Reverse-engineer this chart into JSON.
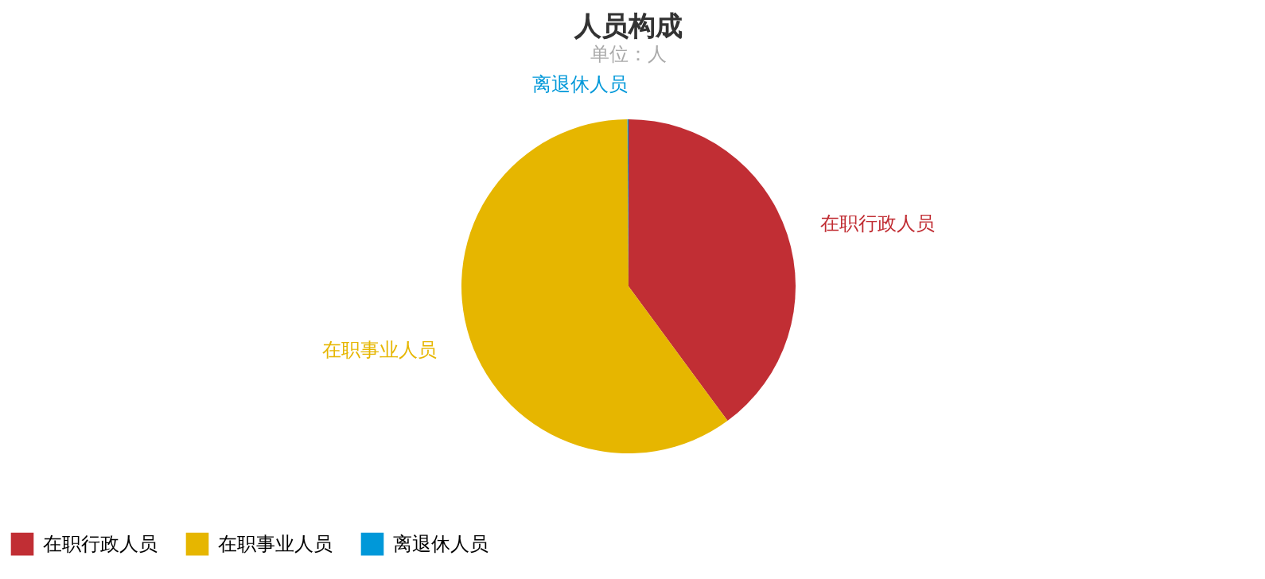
{
  "chart_data": {
    "type": "pie",
    "title": "人员构成",
    "subtitle": "单位：人",
    "categories": [
      "在职行政人员",
      "在职事业人员",
      "离退休人员"
    ],
    "values": [
      39.9,
      60.0,
      0.1
    ],
    "colors": [
      "#c12e34",
      "#e6b600",
      "#0098d9"
    ],
    "legend": "bottom"
  }
}
